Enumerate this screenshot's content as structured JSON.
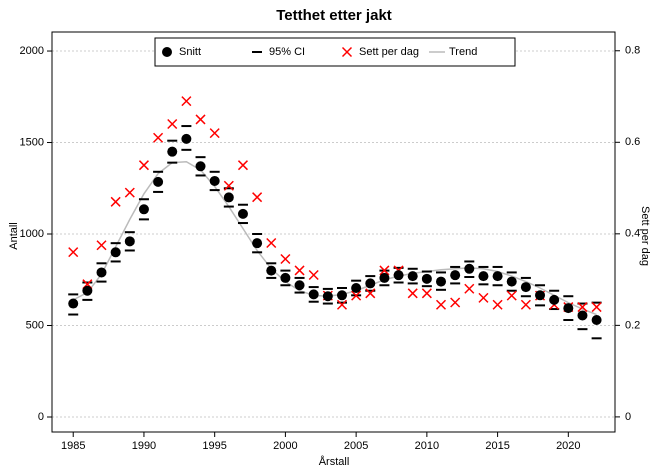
{
  "chart_data": {
    "type": "scatter",
    "title": "Tetthet etter jakt",
    "x_label": "Årstall",
    "y_label": "Antall",
    "y2_label": "Sett per dag",
    "x": [
      1985,
      1986,
      1987,
      1988,
      1989,
      1990,
      1991,
      1992,
      1993,
      1994,
      1995,
      1996,
      1997,
      1998,
      1999,
      2000,
      2001,
      2002,
      2003,
      2004,
      2005,
      2006,
      2007,
      2008,
      2009,
      2010,
      2011,
      2012,
      2013,
      2014,
      2015,
      2016,
      2017,
      2018,
      2019,
      2020,
      2021,
      2022
    ],
    "xlim": [
      1983.5,
      2023.3
    ],
    "xticks": [
      1985,
      1990,
      1995,
      2000,
      2005,
      2010,
      2015,
      2020
    ],
    "ylim": [
      -82,
      2104
    ],
    "yticks": [
      0,
      500,
      1000,
      1500,
      2000
    ],
    "y2lim": [
      -0.033,
      0.841
    ],
    "y2ticks": [
      0,
      0.2,
      0.4,
      0.6,
      0.8
    ],
    "grid": true,
    "legend": "top",
    "series": [
      {
        "name": "Snitt",
        "color": "#000000",
        "marker": "dot",
        "values": [
          620,
          690,
          790,
          900,
          960,
          1135,
          1285,
          1450,
          1520,
          1370,
          1290,
          1200,
          1110,
          950,
          800,
          760,
          720,
          670,
          660,
          665,
          705,
          730,
          760,
          775,
          770,
          755,
          740,
          775,
          810,
          770,
          770,
          740,
          710,
          665,
          640,
          595,
          555,
          530
        ]
      },
      {
        "name": "95% CI",
        "color": "#000000",
        "marker": "dash",
        "lower": [
          560,
          640,
          740,
          850,
          910,
          1080,
          1230,
          1390,
          1460,
          1320,
          1240,
          1150,
          1060,
          900,
          760,
          720,
          680,
          630,
          620,
          625,
          665,
          690,
          720,
          735,
          730,
          715,
          695,
          730,
          765,
          725,
          720,
          690,
          660,
          610,
          590,
          530,
          480,
          430
        ],
        "upper": [
          670,
          735,
          840,
          950,
          1010,
          1190,
          1340,
          1510,
          1590,
          1420,
          1340,
          1250,
          1160,
          1000,
          840,
          800,
          760,
          710,
          700,
          705,
          745,
          770,
          800,
          815,
          810,
          795,
          790,
          820,
          850,
          820,
          820,
          790,
          760,
          720,
          690,
          660,
          620,
          625
        ]
      },
      {
        "name": "Sett per dag",
        "color": "#ff0000",
        "marker": "x",
        "axis": "y2",
        "values": [
          0.36,
          0.29,
          0.375,
          0.47,
          0.49,
          0.55,
          0.61,
          0.64,
          0.69,
          0.65,
          0.62,
          0.505,
          0.55,
          0.48,
          0.38,
          0.345,
          0.32,
          0.31,
          0.265,
          0.245,
          0.265,
          0.27,
          0.32,
          0.32,
          0.27,
          0.27,
          0.245,
          0.25,
          0.28,
          0.26,
          0.245,
          0.265,
          0.245,
          0.265,
          0.245,
          0.24,
          0.24,
          0.24
        ]
      },
      {
        "name": "Trend",
        "color": "#bbbbbb",
        "marker": "line",
        "values": [
          640,
          680,
          780,
          930,
          1080,
          1220,
          1330,
          1390,
          1395,
          1350,
          1260,
          1150,
          1030,
          910,
          810,
          740,
          690,
          665,
          660,
          670,
          690,
          720,
          750,
          770,
          785,
          795,
          805,
          810,
          815,
          810,
          795,
          770,
          740,
          705,
          665,
          625,
          590,
          560
        ]
      }
    ]
  }
}
